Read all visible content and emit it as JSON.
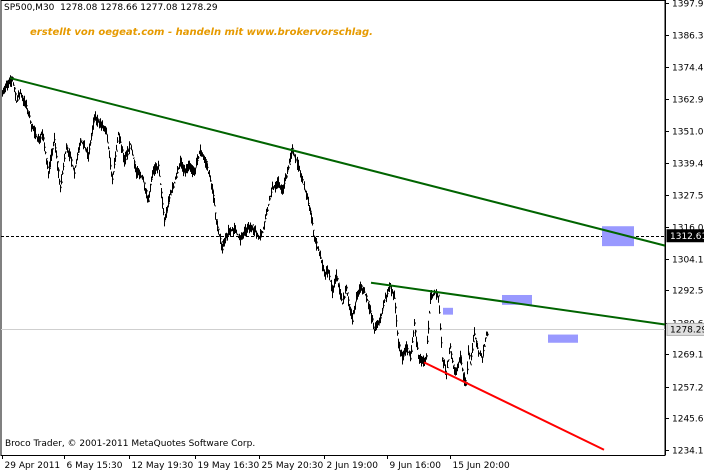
{
  "header": {
    "info": "SP500,M30  1278.08 1278.66 1277.08 1278.29"
  },
  "watermark": "erstellt von oegeat.com - handeln mit www.brokervorschlag.",
  "copyright": "Broco Trader, © 2001-2011 MetaQuotes Software Corp.",
  "colors": {
    "price": "#000000",
    "trend_upper": "#006400",
    "trend_lower": "#ff0000",
    "zone": "#9999ff",
    "watermark": "#e69a00"
  },
  "chart_data": {
    "type": "line",
    "symbol": "SP500",
    "timeframe": "M30",
    "ohlc_current": {
      "open": 1278.08,
      "high": 1278.66,
      "low": 1277.08,
      "close": 1278.29
    },
    "ylim": [
      1233,
      1399
    ],
    "yticks": [
      1397.9,
      1386.35,
      1374.45,
      1362.9,
      1351.0,
      1339.45,
      1327.55,
      1316.0,
      1304.1,
      1292.55,
      1280.65,
      1269.1,
      1257.2,
      1245.65,
      1234.1
    ],
    "xticks": [
      {
        "label": "29 Apr 2011",
        "i": 0
      },
      {
        "label": "6 May 15:30",
        "i": 62
      },
      {
        "label": "12 May 19:30",
        "i": 127
      },
      {
        "label": "19 May 16:30",
        "i": 193
      },
      {
        "label": "25 May 20:30",
        "i": 257
      },
      {
        "label": "2 Jun 19:00",
        "i": 322
      },
      {
        "label": "9 Jun 16:00",
        "i": 385
      },
      {
        "label": "15 Jun 20:00",
        "i": 448
      }
    ],
    "price_labels": [
      {
        "value": 1312.61,
        "style": "dark"
      },
      {
        "value": 1278.29,
        "style": "light"
      }
    ],
    "series_anchors": [
      [
        0,
        1366
      ],
      [
        6,
        1368
      ],
      [
        10,
        1370
      ],
      [
        14,
        1362
      ],
      [
        18,
        1365
      ],
      [
        24,
        1360
      ],
      [
        30,
        1352
      ],
      [
        36,
        1348
      ],
      [
        40,
        1350
      ],
      [
        46,
        1336
      ],
      [
        52,
        1348
      ],
      [
        58,
        1330
      ],
      [
        64,
        1346
      ],
      [
        72,
        1336
      ],
      [
        78,
        1348
      ],
      [
        86,
        1342
      ],
      [
        92,
        1356
      ],
      [
        98,
        1354
      ],
      [
        104,
        1350
      ],
      [
        110,
        1333
      ],
      [
        116,
        1350
      ],
      [
        122,
        1340
      ],
      [
        128,
        1346
      ],
      [
        134,
        1336
      ],
      [
        140,
        1334
      ],
      [
        146,
        1326
      ],
      [
        150,
        1336
      ],
      [
        156,
        1338
      ],
      [
        162,
        1318
      ],
      [
        168,
        1328
      ],
      [
        172,
        1332
      ],
      [
        178,
        1340
      ],
      [
        182,
        1336
      ],
      [
        186,
        1338
      ],
      [
        192,
        1336
      ],
      [
        198,
        1344
      ],
      [
        204,
        1339
      ],
      [
        210,
        1330
      ],
      [
        214,
        1318
      ],
      [
        220,
        1308
      ],
      [
        226,
        1314
      ],
      [
        232,
        1315
      ],
      [
        238,
        1311
      ],
      [
        244,
        1315
      ],
      [
        250,
        1316
      ],
      [
        256,
        1312
      ],
      [
        260,
        1314
      ],
      [
        266,
        1324
      ],
      [
        270,
        1330
      ],
      [
        276,
        1332
      ],
      [
        280,
        1329
      ],
      [
        286,
        1338
      ],
      [
        290,
        1344
      ],
      [
        296,
        1338
      ],
      [
        302,
        1330
      ],
      [
        308,
        1322
      ],
      [
        312,
        1312
      ],
      [
        318,
        1305
      ],
      [
        322,
        1298
      ],
      [
        326,
        1300
      ],
      [
        330,
        1292
      ],
      [
        334,
        1298
      ],
      [
        340,
        1288
      ],
      [
        344,
        1293
      ],
      [
        350,
        1282
      ],
      [
        354,
        1290
      ],
      [
        358,
        1294
      ],
      [
        362,
        1292
      ],
      [
        366,
        1288
      ],
      [
        372,
        1278
      ],
      [
        378,
        1282
      ],
      [
        382,
        1289
      ],
      [
        388,
        1294
      ],
      [
        392,
        1290
      ],
      [
        396,
        1273
      ],
      [
        400,
        1268
      ],
      [
        404,
        1272
      ],
      [
        408,
        1268
      ],
      [
        412,
        1280
      ],
      [
        416,
        1268
      ],
      [
        420,
        1266
      ],
      [
        424,
        1268
      ],
      [
        428,
        1290
      ],
      [
        432,
        1292
      ],
      [
        436,
        1290
      ],
      [
        440,
        1268
      ],
      [
        444,
        1262
      ],
      [
        448,
        1272
      ],
      [
        452,
        1262
      ],
      [
        458,
        1268
      ],
      [
        462,
        1260
      ],
      [
        464,
        1258
      ],
      [
        466,
        1270
      ],
      [
        468,
        1266
      ],
      [
        472,
        1277
      ],
      [
        476,
        1270
      ],
      [
        480,
        1268
      ],
      [
        484,
        1277
      ],
      [
        486,
        1275
      ]
    ],
    "trendlines": [
      {
        "name": "upper",
        "color": "#006400",
        "from": [
          8,
          1370.4
        ],
        "to": [
          664,
          1309
        ]
      },
      {
        "name": "middle",
        "color": "#006400",
        "from": [
          369,
          1295.4
        ],
        "to": [
          664,
          1280.1
        ]
      },
      {
        "name": "lower",
        "color": "#ff0000",
        "from": [
          422,
          1266.2
        ],
        "to": [
          602,
          1234.2
        ]
      }
    ],
    "zones": [
      {
        "i0": 600,
        "i1": 632,
        "v0": 1308.8,
        "v1": 1316.1
      },
      {
        "i0": 500,
        "i1": 530,
        "v0": 1287.3,
        "v1": 1290.9
      },
      {
        "i0": 546,
        "i1": 576,
        "v0": 1273.4,
        "v1": 1276.4
      },
      {
        "i0": 441,
        "i1": 451,
        "v0": 1283.7,
        "v1": 1286.2
      }
    ],
    "hlines": [
      {
        "value": 1312.61,
        "style": "dashed"
      },
      {
        "value": 1278.29,
        "style": "solid-light"
      }
    ]
  }
}
